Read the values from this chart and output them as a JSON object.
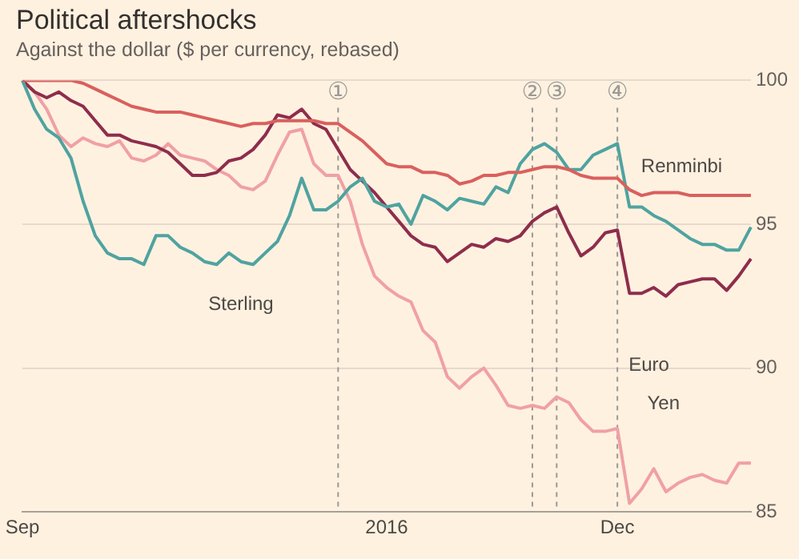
{
  "chart_data": {
    "type": "line",
    "title": "Political aftershocks",
    "subtitle": "Against the dollar ($ per currency, rebased)",
    "categories": [
      "Sep",
      null,
      null,
      null,
      null,
      null,
      null,
      null,
      null,
      null,
      null,
      null,
      null,
      null,
      null,
      null,
      null,
      null,
      null,
      null,
      null,
      null,
      null,
      null,
      null,
      null,
      null,
      null,
      null,
      null,
      "2016",
      null,
      null,
      null,
      null,
      null,
      null,
      null,
      null,
      null,
      null,
      null,
      null,
      null,
      null,
      null,
      null,
      null,
      null,
      "Dec",
      null,
      null,
      null,
      null,
      null,
      null,
      null,
      null,
      null,
      null,
      null
    ],
    "ylim": [
      85,
      100
    ],
    "yticks": [
      85,
      90,
      95,
      100
    ],
    "grid": "y",
    "legend": false,
    "annotations": [
      "①",
      "②",
      "③",
      "④"
    ],
    "series": [
      {
        "name": "Renminbi",
        "color": "#d9605e",
        "values": [
          100,
          100,
          100,
          100,
          100,
          99.9,
          99.7,
          99.5,
          99.3,
          99.1,
          99.0,
          98.9,
          98.9,
          98.9,
          98.8,
          98.7,
          98.6,
          98.5,
          98.4,
          98.5,
          98.5,
          98.6,
          98.6,
          98.6,
          98.6,
          98.5,
          98.5,
          98.2,
          97.9,
          97.5,
          97.1,
          97.0,
          97.0,
          96.8,
          96.8,
          96.7,
          96.4,
          96.5,
          96.7,
          96.7,
          96.8,
          96.8,
          96.9,
          97.0,
          97.0,
          96.9,
          96.7,
          96.6,
          96.6,
          96.6,
          96.2,
          96.0,
          96.1,
          96.1,
          96.1,
          96.0,
          96.0,
          96.0,
          96.0,
          96.0,
          96.0
        ]
      },
      {
        "name": "Sterling",
        "color": "#4fa3a0",
        "values": [
          100,
          99.0,
          98.3,
          98.0,
          97.3,
          95.8,
          94.6,
          94.0,
          93.8,
          93.8,
          93.6,
          94.6,
          94.6,
          94.2,
          94.0,
          93.7,
          93.6,
          94.0,
          93.7,
          93.6,
          94.0,
          94.4,
          95.3,
          96.6,
          95.5,
          95.5,
          95.8,
          96.3,
          96.6,
          95.8,
          95.6,
          95.7,
          95.0,
          96.0,
          95.8,
          95.5,
          95.9,
          95.8,
          95.7,
          96.3,
          96.1,
          97.1,
          97.6,
          97.8,
          97.5,
          96.9,
          96.9,
          97.4,
          97.6,
          97.8,
          95.6,
          95.6,
          95.3,
          95.1,
          94.8,
          94.5,
          94.3,
          94.3,
          94.1,
          94.1,
          94.9
        ]
      },
      {
        "name": "Euro",
        "color": "#8e2d4c",
        "values": [
          100,
          99.6,
          99.4,
          99.6,
          99.3,
          99.1,
          98.6,
          98.1,
          98.1,
          97.9,
          97.8,
          97.7,
          97.5,
          97.1,
          96.7,
          96.7,
          96.8,
          97.2,
          97.3,
          97.6,
          98.1,
          98.8,
          98.7,
          99.0,
          98.5,
          98.3,
          97.6,
          96.9,
          96.5,
          96.1,
          95.6,
          95.1,
          94.6,
          94.3,
          94.2,
          93.7,
          94.0,
          94.3,
          94.2,
          94.5,
          94.4,
          94.6,
          95.1,
          95.4,
          95.6,
          94.7,
          93.9,
          94.2,
          94.7,
          94.8,
          92.6,
          92.6,
          92.8,
          92.5,
          92.9,
          93.0,
          93.1,
          93.1,
          92.7,
          93.2,
          93.8
        ]
      },
      {
        "name": "Yen",
        "color": "#f0a0a6",
        "values": [
          100,
          99.6,
          99.0,
          98.1,
          97.7,
          98.0,
          97.8,
          97.7,
          97.9,
          97.3,
          97.2,
          97.4,
          97.8,
          97.4,
          97.3,
          97.2,
          96.9,
          96.7,
          96.3,
          96.2,
          96.5,
          97.4,
          98.2,
          98.3,
          97.1,
          96.7,
          96.7,
          95.8,
          94.3,
          93.2,
          92.8,
          92.5,
          92.3,
          91.3,
          90.9,
          89.7,
          89.3,
          89.7,
          90.0,
          89.4,
          88.7,
          88.6,
          88.7,
          88.6,
          89.0,
          88.8,
          88.2,
          87.8,
          87.8,
          87.9,
          85.3,
          85.8,
          86.5,
          85.7,
          86.0,
          86.2,
          86.3,
          86.1,
          86.0,
          86.7,
          86.7
        ]
      }
    ]
  }
}
